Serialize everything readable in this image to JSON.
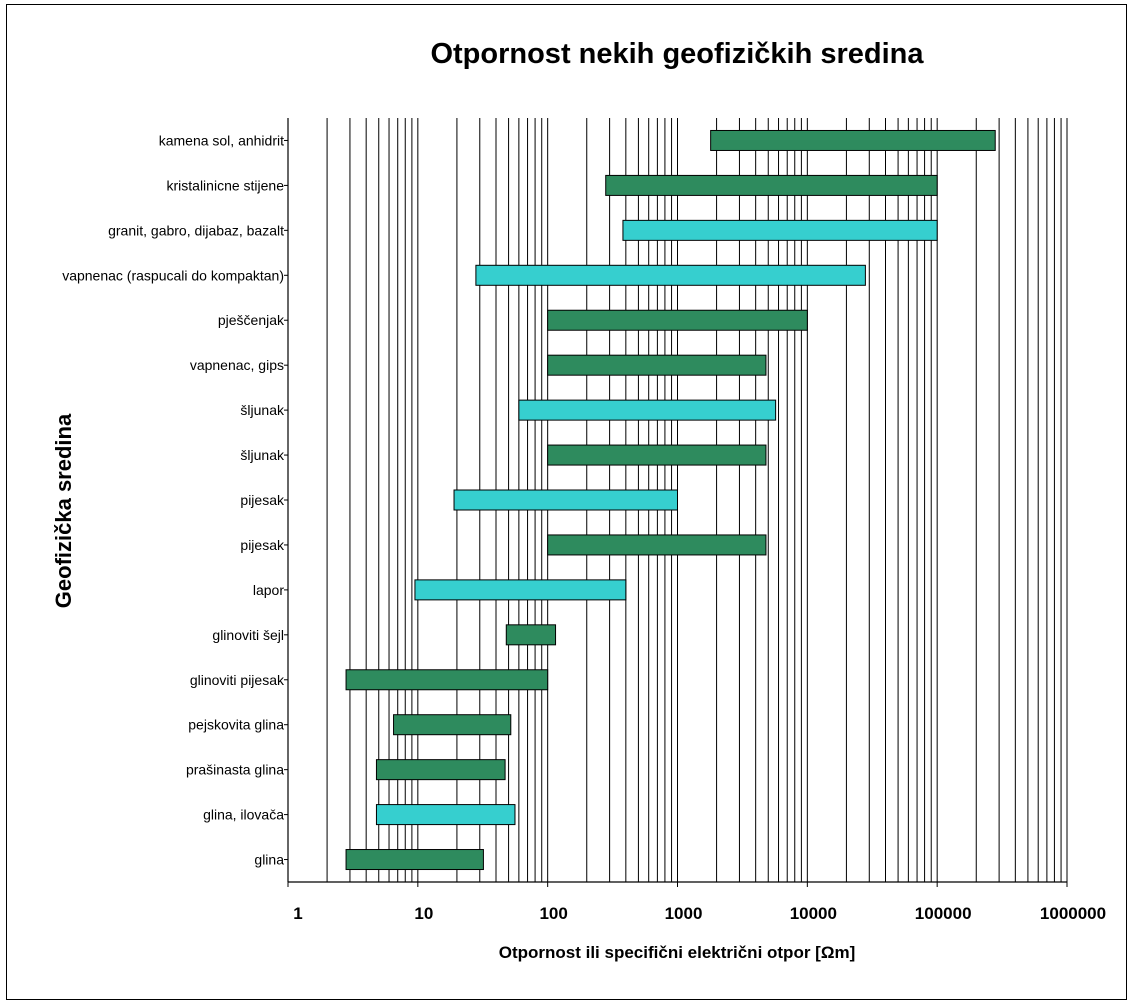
{
  "chart_data": {
    "type": "bar",
    "orientation": "horizontal-range",
    "title": "Otpornost nekih geofizičkih sredina",
    "xlabel": "Otpornost ili specifični električni otpor [Ωm]",
    "ylabel": "Geofizička sredina",
    "x_scale": "log",
    "xlim": [
      1,
      1000000
    ],
    "x_ticks": [
      "1",
      "10",
      "100",
      "1000",
      "10000",
      "100000",
      "1000000"
    ],
    "grid": true,
    "colors": {
      "green": "#2e8b5e",
      "cyan": "#36cfcf"
    },
    "bars": [
      {
        "category": "kamena sol, anhidrit",
        "min": 1800,
        "max": 280000,
        "color": "green"
      },
      {
        "category": "kristalinicne stijene",
        "min": 280,
        "max": 100000,
        "color": "green"
      },
      {
        "category": "granit, gabro, dijabaz, bazalt",
        "min": 380,
        "max": 100000,
        "color": "cyan"
      },
      {
        "category": "vapnenac (raspucali do kompaktan)",
        "min": 28,
        "max": 28000,
        "color": "cyan"
      },
      {
        "category": "pješčenjak",
        "min": 100,
        "max": 10000,
        "color": "green"
      },
      {
        "category": "vapnenac, gips",
        "min": 100,
        "max": 4800,
        "color": "green"
      },
      {
        "category": "šljunak",
        "min": 60,
        "max": 5700,
        "color": "cyan"
      },
      {
        "category": "šljunak",
        "min": 100,
        "max": 4800,
        "color": "green"
      },
      {
        "category": "pijesak",
        "min": 19,
        "max": 1000,
        "color": "cyan"
      },
      {
        "category": "pijesak",
        "min": 100,
        "max": 4800,
        "color": "green"
      },
      {
        "category": "lapor",
        "min": 9.5,
        "max": 400,
        "color": "cyan"
      },
      {
        "category": "glinoviti šejl",
        "min": 48,
        "max": 115,
        "color": "green"
      },
      {
        "category": "glinoviti pijesak",
        "min": 2.8,
        "max": 100,
        "color": "green"
      },
      {
        "category": "pejskovita glina",
        "min": 6.5,
        "max": 52,
        "color": "green"
      },
      {
        "category": "prašinasta glina",
        "min": 4.8,
        "max": 47,
        "color": "green"
      },
      {
        "category": "glina, ilovača",
        "min": 4.8,
        "max": 56,
        "color": "cyan"
      },
      {
        "category": "glina",
        "min": 2.8,
        "max": 32,
        "color": "green"
      }
    ]
  }
}
